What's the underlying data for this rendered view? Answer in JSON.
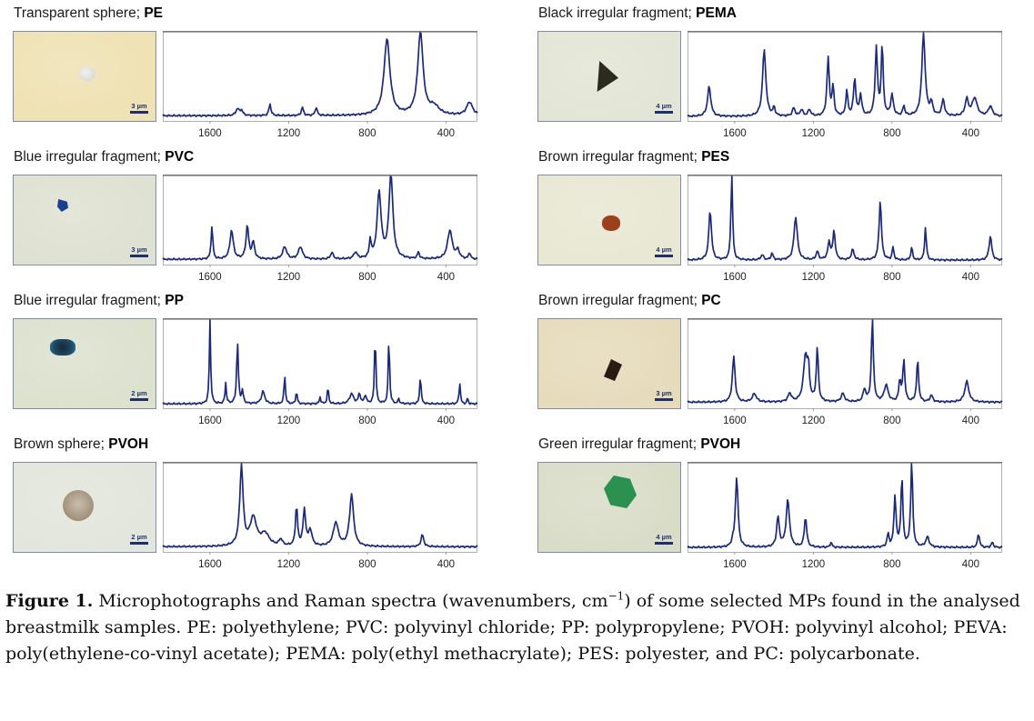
{
  "figure": {
    "caption_label": "Figure 1.",
    "caption_pre": " Microphotographs and Raman spectra (wavenumbers, cm",
    "caption_sup": "−1",
    "caption_post": ") of some selected MPs found in the analysed breastmilk samples. PE: polyethylene; PVC: polyvinyl chloride; PP: polypropylene; PVOH: polyvinyl alcohol; PEVA: poly(ethylene-co-vinyl acetate); PEMA: poly(ethyl methacrylate); PES: polyester, and PC: polycarbonate."
  },
  "colors": {
    "line": "#1a2a78",
    "axis": "#888888",
    "scalebar": "#1f2f6e"
  },
  "panels": [
    {
      "description": "Transparent sphere; ",
      "polymer": "PE",
      "scale_label": "3 µm",
      "photo_bg": "#efe2b4",
      "particle": "transparent-sphere",
      "particle_color": "#c9cfd2"
    },
    {
      "description": "Black irregular fragment; ",
      "polymer": "PEMA",
      "scale_label": "4 µm",
      "photo_bg": "#e3e6d6",
      "particle": "black-triangle",
      "particle_color": "#2b2b20"
    },
    {
      "description": "Blue irregular fragment; ",
      "polymer": "PVC",
      "scale_label": "3 µm",
      "photo_bg": "#dfe2d2",
      "particle": "blue-fragment",
      "particle_color": "#1b3f8f"
    },
    {
      "description": "Brown irregular fragment; ",
      "polymer": "PES",
      "scale_label": "4 µm",
      "photo_bg": "#e9e8d4",
      "particle": "brown-fragment",
      "particle_color": "#9c3f1c"
    },
    {
      "description": "Blue irregular fragment; ",
      "polymer": "PP",
      "scale_label": "2 µm",
      "photo_bg": "#dde2cf",
      "particle": "blue-cluster",
      "particle_color": "#1d4a6a"
    },
    {
      "description": "Brown irregular fragment; ",
      "polymer": "PC",
      "scale_label": "3 µm",
      "photo_bg": "#e6dcbc",
      "particle": "dark-fragment",
      "particle_color": "#2a1a14"
    },
    {
      "description": "Brown sphere; ",
      "polymer": "PVOH",
      "scale_label": "2 µm",
      "photo_bg": "#e3e6dc",
      "particle": "brown-sphere",
      "particle_color": "#9a8a70"
    },
    {
      "description": "Green irregular fragment; ",
      "polymer": "PVOH",
      "scale_label": "4 µm",
      "photo_bg": "#d9ddc8",
      "particle": "green-fragment",
      "particle_color": "#2b9150"
    }
  ],
  "chart_data": [
    {
      "type": "line",
      "title": "Transparent sphere; PE",
      "xlabel": "",
      "ylabel": "",
      "xlim": [
        1840,
        240
      ],
      "ylim": [
        0,
        1
      ],
      "xticks": [
        1600,
        1200,
        800,
        400
      ],
      "grid": false,
      "peaks": [
        [
          1460,
          0.08,
          10
        ],
        [
          1440,
          0.06,
          8
        ],
        [
          1295,
          0.14,
          6
        ],
        [
          1130,
          0.1,
          6
        ],
        [
          1060,
          0.1,
          6
        ],
        [
          700,
          0.92,
          18
        ],
        [
          530,
          1.0,
          16
        ],
        [
          460,
          0.1,
          30
        ],
        [
          280,
          0.16,
          18
        ]
      ],
      "baseline": 0.03
    },
    {
      "type": "line",
      "title": "Black irregular fragment; PEMA",
      "xlabel": "",
      "ylabel": "",
      "xlim": [
        1840,
        240
      ],
      "ylim": [
        0,
        1
      ],
      "xticks": [
        1600,
        1200,
        800,
        400
      ],
      "grid": false,
      "peaks": [
        [
          1730,
          0.36,
          10
        ],
        [
          1450,
          0.8,
          10
        ],
        [
          1400,
          0.1,
          6
        ],
        [
          1300,
          0.1,
          8
        ],
        [
          1260,
          0.08,
          8
        ],
        [
          1220,
          0.08,
          8
        ],
        [
          1125,
          0.7,
          7
        ],
        [
          1100,
          0.35,
          6
        ],
        [
          1030,
          0.3,
          6
        ],
        [
          990,
          0.45,
          7
        ],
        [
          960,
          0.25,
          7
        ],
        [
          880,
          0.82,
          7
        ],
        [
          850,
          0.85,
          6
        ],
        [
          800,
          0.25,
          8
        ],
        [
          740,
          0.12,
          6
        ],
        [
          640,
          1.0,
          10
        ],
        [
          600,
          0.15,
          8
        ],
        [
          540,
          0.2,
          8
        ],
        [
          420,
          0.2,
          10
        ],
        [
          380,
          0.22,
          15
        ],
        [
          300,
          0.12,
          12
        ]
      ],
      "baseline": 0.02
    },
    {
      "type": "line",
      "title": "Blue irregular fragment; PVC",
      "xlabel": "",
      "ylabel": "",
      "xlim": [
        1840,
        240
      ],
      "ylim": [
        0,
        1
      ],
      "xticks": [
        1600,
        1200,
        800,
        400
      ],
      "grid": false,
      "peaks": [
        [
          1590,
          0.4,
          5
        ],
        [
          1490,
          0.35,
          10
        ],
        [
          1410,
          0.4,
          8
        ],
        [
          1380,
          0.2,
          8
        ],
        [
          1220,
          0.15,
          12
        ],
        [
          1140,
          0.15,
          12
        ],
        [
          980,
          0.08,
          8
        ],
        [
          860,
          0.08,
          10
        ],
        [
          785,
          0.22,
          5
        ],
        [
          740,
          0.8,
          12
        ],
        [
          680,
          1.0,
          12
        ],
        [
          540,
          0.08,
          6
        ],
        [
          380,
          0.35,
          14
        ],
        [
          340,
          0.1,
          10
        ],
        [
          280,
          0.08,
          5
        ]
      ],
      "baseline": 0.03
    },
    {
      "type": "line",
      "title": "Brown irregular fragment; PES",
      "xlabel": "",
      "ylabel": "",
      "xlim": [
        1840,
        240
      ],
      "ylim": [
        0,
        1
      ],
      "xticks": [
        1600,
        1200,
        800,
        400
      ],
      "grid": false,
      "peaks": [
        [
          1725,
          0.58,
          8
        ],
        [
          1615,
          1.0,
          5
        ],
        [
          1460,
          0.06,
          8
        ],
        [
          1410,
          0.08,
          6
        ],
        [
          1290,
          0.5,
          10
        ],
        [
          1180,
          0.1,
          7
        ],
        [
          1120,
          0.2,
          8
        ],
        [
          1095,
          0.33,
          7
        ],
        [
          1000,
          0.12,
          8
        ],
        [
          860,
          0.7,
          7
        ],
        [
          795,
          0.15,
          5
        ],
        [
          700,
          0.15,
          5
        ],
        [
          630,
          0.38,
          5
        ],
        [
          300,
          0.28,
          8
        ]
      ],
      "baseline": 0.02
    },
    {
      "type": "line",
      "title": "Blue irregular fragment; PP",
      "xlabel": "",
      "ylabel": "",
      "xlim": [
        1840,
        240
      ],
      "ylim": [
        0,
        1
      ],
      "xticks": [
        1600,
        1200,
        800,
        400
      ],
      "grid": false,
      "peaks": [
        [
          1600,
          1.0,
          4
        ],
        [
          1520,
          0.25,
          4
        ],
        [
          1460,
          0.75,
          5
        ],
        [
          1435,
          0.15,
          5
        ],
        [
          1330,
          0.15,
          10
        ],
        [
          1220,
          0.35,
          4
        ],
        [
          1160,
          0.15,
          4
        ],
        [
          1040,
          0.08,
          4
        ],
        [
          1000,
          0.2,
          4
        ],
        [
          880,
          0.12,
          12
        ],
        [
          810,
          0.1,
          6
        ],
        [
          840,
          0.12,
          6
        ],
        [
          760,
          0.85,
          4
        ],
        [
          690,
          0.82,
          4
        ],
        [
          640,
          0.06,
          4
        ],
        [
          530,
          0.35,
          4
        ],
        [
          330,
          0.25,
          4
        ],
        [
          290,
          0.08,
          3
        ]
      ],
      "baseline": 0.02
    },
    {
      "type": "line",
      "title": "Brown irregular fragment; PC",
      "xlabel": "",
      "ylabel": "",
      "xlim": [
        1840,
        240
      ],
      "ylim": [
        0,
        1
      ],
      "xticks": [
        1600,
        1200,
        800,
        400
      ],
      "grid": false,
      "peaks": [
        [
          1605,
          0.55,
          8
        ],
        [
          1500,
          0.1,
          12
        ],
        [
          1320,
          0.1,
          10
        ],
        [
          1240,
          0.55,
          12
        ],
        [
          1225,
          0.32,
          6
        ],
        [
          1180,
          0.65,
          6
        ],
        [
          1050,
          0.1,
          10
        ],
        [
          940,
          0.15,
          8
        ],
        [
          900,
          1.0,
          6
        ],
        [
          830,
          0.2,
          12
        ],
        [
          760,
          0.25,
          6
        ],
        [
          740,
          0.5,
          6
        ],
        [
          670,
          0.5,
          6
        ],
        [
          600,
          0.08,
          8
        ],
        [
          420,
          0.25,
          12
        ]
      ],
      "baseline": 0.04
    },
    {
      "type": "line",
      "title": "Brown sphere; PVOH",
      "xlabel": "",
      "ylabel": "",
      "xlim": [
        1840,
        240
      ],
      "ylim": [
        0,
        1
      ],
      "xticks": [
        1600,
        1200,
        800,
        400
      ],
      "grid": false,
      "peaks": [
        [
          1440,
          1.0,
          10
        ],
        [
          1380,
          0.35,
          20
        ],
        [
          1320,
          0.15,
          25
        ],
        [
          1240,
          0.08,
          10
        ],
        [
          1160,
          0.5,
          6
        ],
        [
          1120,
          0.45,
          8
        ],
        [
          1090,
          0.2,
          10
        ],
        [
          960,
          0.3,
          15
        ],
        [
          880,
          0.65,
          12
        ],
        [
          520,
          0.15,
          8
        ]
      ],
      "baseline": 0.03
    },
    {
      "type": "line",
      "title": "Green irregular fragment; PVOH",
      "xlabel": "",
      "ylabel": "",
      "xlim": [
        1840,
        240
      ],
      "ylim": [
        0,
        1
      ],
      "xticks": [
        1600,
        1200,
        800,
        400
      ],
      "grid": false,
      "peaks": [
        [
          1590,
          0.82,
          8
        ],
        [
          1610,
          0.05,
          5
        ],
        [
          1380,
          0.35,
          8
        ],
        [
          1330,
          0.55,
          10
        ],
        [
          1240,
          0.35,
          7
        ],
        [
          1110,
          0.06,
          5
        ],
        [
          820,
          0.15,
          6
        ],
        [
          785,
          0.6,
          6
        ],
        [
          750,
          0.8,
          6
        ],
        [
          700,
          1.0,
          6
        ],
        [
          620,
          0.12,
          10
        ],
        [
          360,
          0.16,
          6
        ],
        [
          290,
          0.06,
          6
        ]
      ],
      "baseline": 0.02
    }
  ]
}
